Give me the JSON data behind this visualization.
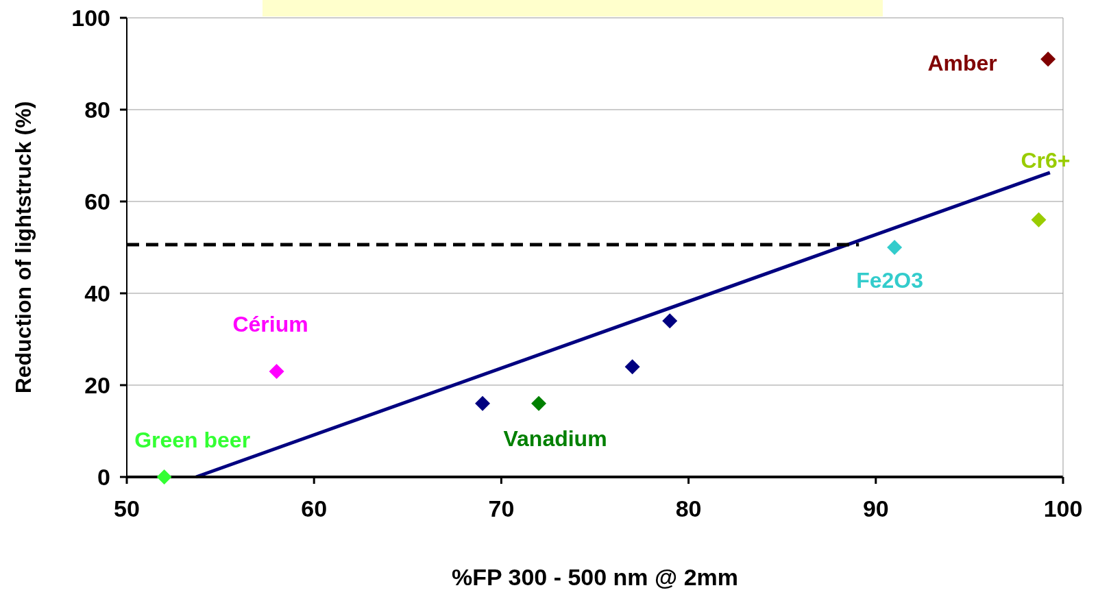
{
  "chart_data": {
    "type": "scatter",
    "xlabel": "%FP 300 - 500 nm @ 2mm",
    "ylabel": "Reduction of lightstruck (%)",
    "xlim": [
      50,
      100
    ],
    "xticks": [
      50,
      60,
      70,
      80,
      90,
      100
    ],
    "ylim": [
      0,
      100
    ],
    "yticks": [
      0,
      20,
      40,
      60,
      80,
      100
    ],
    "grid": "y",
    "marker": "diamond",
    "series": [
      {
        "color": "#000080",
        "x": [
          69,
          77,
          79
        ],
        "values": [
          16,
          24,
          34
        ]
      },
      {
        "name": "Green beer",
        "color": "#33ff33",
        "x": [
          52
        ],
        "values": [
          0
        ]
      },
      {
        "name": "Cérium",
        "color": "#ff00ff",
        "x": [
          58
        ],
        "values": [
          23
        ]
      },
      {
        "name": "Vanadium",
        "color": "#008000",
        "x": [
          72
        ],
        "values": [
          16
        ]
      },
      {
        "name": "Fe2O3",
        "color": "#33cccc",
        "x": [
          91
        ],
        "values": [
          50
        ]
      },
      {
        "name": "Cr6+",
        "color": "#99cc00",
        "x": [
          98.7
        ],
        "values": [
          56
        ]
      },
      {
        "name": "Amber",
        "color": "#800000",
        "x": [
          99.2
        ],
        "values": [
          91
        ]
      },
      {
        "type": "line",
        "color": "#000080",
        "x": [
          53.7,
          99.3
        ],
        "values": [
          0,
          66.3
        ],
        "marker": "none",
        "line_style": "solid"
      },
      {
        "type": "line",
        "color": "#000000",
        "x": [
          50,
          89.1
        ],
        "values": [
          50.6,
          50.6
        ],
        "marker": "none",
        "line_style": "dashed"
      }
    ]
  }
}
